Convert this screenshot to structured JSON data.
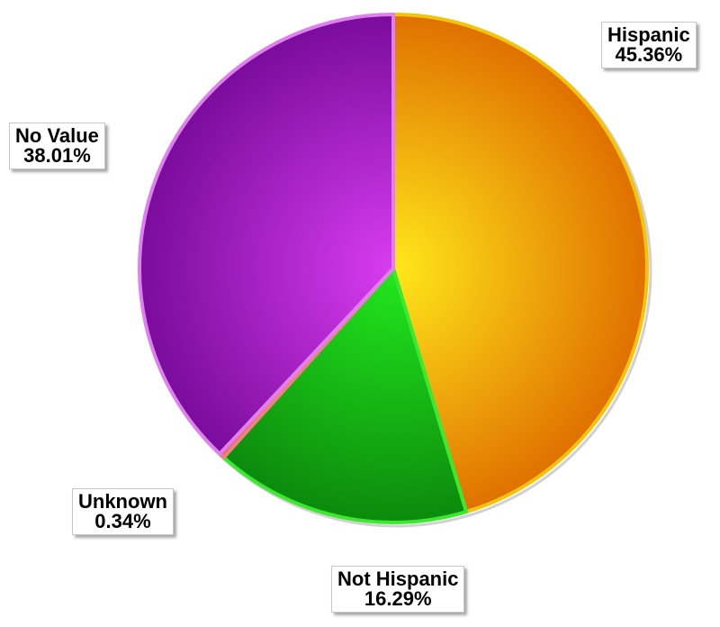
{
  "chart_data": {
    "type": "pie",
    "title": "",
    "slices": [
      {
        "label": "Hispanic",
        "pct_text": "45.36%",
        "value": 45.36,
        "color_light": "#FFE81A",
        "color_dark": "#E07000",
        "edge": "#F2C40A"
      },
      {
        "label": "Not Hispanic",
        "pct_text": "16.29%",
        "value": 16.29,
        "color_light": "#22E81E",
        "color_dark": "#0C8A0C",
        "edge": "#3CE830"
      },
      {
        "label": "Unknown",
        "pct_text": "0.34%",
        "value": 0.34,
        "color_light": "#FF9A9A",
        "color_dark": "#E06A6A",
        "edge": "#F08080"
      },
      {
        "label": "No Value",
        "pct_text": "38.01%",
        "value": 38.01,
        "color_light": "#D83CF0",
        "color_dark": "#7A0C9C",
        "edge": "#E080F0"
      }
    ]
  }
}
